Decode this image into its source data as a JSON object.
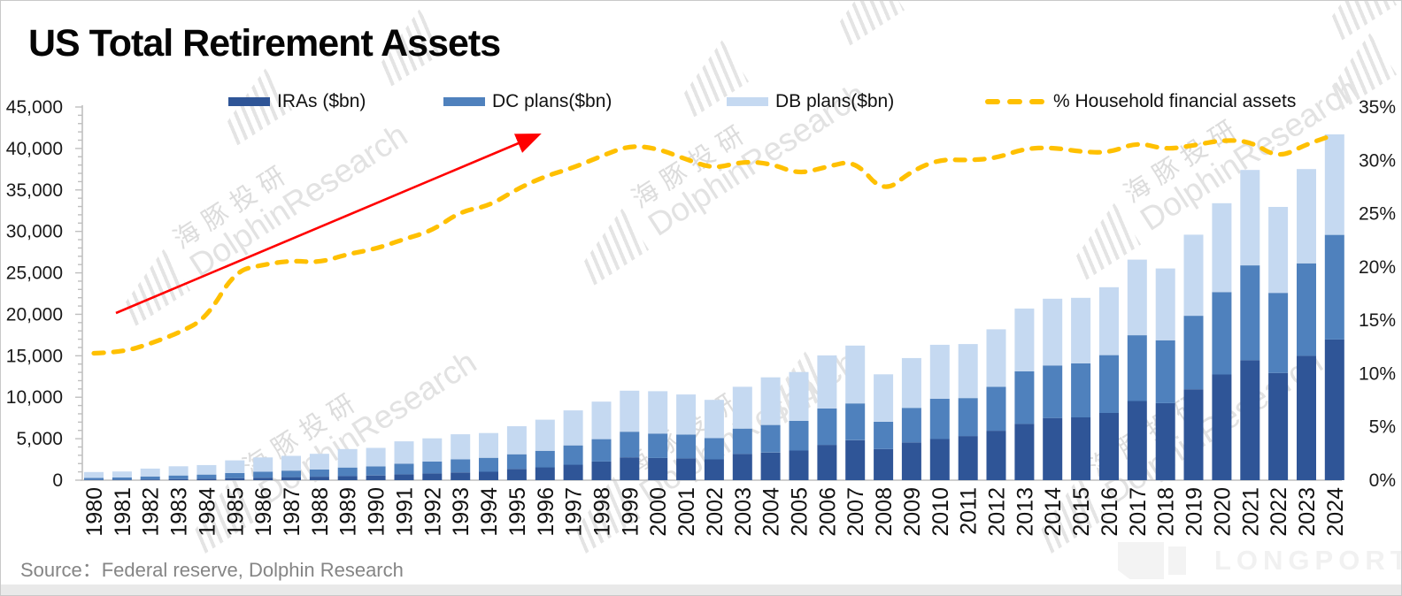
{
  "title": "US Total Retirement Assets",
  "source": "Source：Federal reserve, Dolphin Research",
  "watermark": {
    "cn": "海豚投研",
    "en": "DolphinResearch"
  },
  "footer": {
    "brand": "LONGPORT"
  },
  "legend": {
    "items": [
      {
        "label": "IRAs ($bn)",
        "color": "#2F5597",
        "marker": "bar"
      },
      {
        "label": "DC plans($bn)",
        "color": "#4F81BD",
        "marker": "bar"
      },
      {
        "label": "DB plans($bn)",
        "color": "#C5D9F1",
        "marker": "bar"
      },
      {
        "label": "% Household financial assets",
        "color": "#FFC000",
        "marker": "dashed-line"
      }
    ]
  },
  "chart_data": {
    "type": "bar",
    "stacked": true,
    "grid": false,
    "legend_position": "top",
    "title": "US Total Retirement Assets",
    "xlabel": "",
    "ylabel_left": "",
    "ylabel_right": "",
    "categories": [
      "1980",
      "1981",
      "1982",
      "1983",
      "1984",
      "1985",
      "1986",
      "1987",
      "1988",
      "1989",
      "1990",
      "1991",
      "1992",
      "1993",
      "1994",
      "1995",
      "1996",
      "1997",
      "1998",
      "1999",
      "2000",
      "2001",
      "2002",
      "2003",
      "2004",
      "2005",
      "2006",
      "2007",
      "2008",
      "2009",
      "2010",
      "2011",
      "2012",
      "2013",
      "2014",
      "2015",
      "2016",
      "2017",
      "2018",
      "2019",
      "2020",
      "2021",
      "2022",
      "2023",
      "2024"
    ],
    "series": [
      {
        "name": "IRAs ($bn)",
        "type": "bar",
        "axis": "left",
        "color": "#2F5597",
        "values": [
          30,
          45,
          90,
          135,
          185,
          240,
          300,
          360,
          420,
          500,
          570,
          700,
          810,
          930,
          1010,
          1350,
          1545,
          1865,
          2250,
          2750,
          2680,
          2620,
          2510,
          3155,
          3330,
          3570,
          4250,
          4825,
          3755,
          4535,
          4965,
          5320,
          5960,
          6790,
          7500,
          7570,
          8110,
          9545,
          9290,
          10960,
          12740,
          14460,
          12920,
          15000,
          16970
        ]
      },
      {
        "name": "DC plans($bn)",
        "type": "bar",
        "axis": "left",
        "color": "#4F81BD",
        "values": [
          250,
          280,
          360,
          430,
          490,
          620,
          720,
          790,
          870,
          1030,
          1090,
          1290,
          1440,
          1590,
          1690,
          1770,
          2000,
          2330,
          2700,
          3090,
          2940,
          2880,
          2560,
          3065,
          3320,
          3575,
          4400,
          4430,
          3285,
          4185,
          4860,
          4580,
          5300,
          6330,
          6335,
          6510,
          6970,
          7935,
          7580,
          8860,
          9940,
          11440,
          9660,
          11150,
          12610
        ]
      },
      {
        "name": "DB plans($bn)",
        "type": "bar",
        "axis": "left",
        "color": "#C5D9F1",
        "values": [
          700,
          725,
          945,
          1110,
          1145,
          1530,
          1725,
          1780,
          1885,
          2225,
          2230,
          2690,
          2790,
          3015,
          2985,
          3380,
          3745,
          4215,
          4520,
          4950,
          5110,
          4830,
          4615,
          5040,
          5750,
          5895,
          6400,
          6975,
          5720,
          6010,
          6505,
          6510,
          6930,
          7580,
          8045,
          7910,
          8190,
          9120,
          8655,
          9780,
          10720,
          11510,
          10370,
          11360,
          12120
        ]
      },
      {
        "name": "% Household financial assets",
        "type": "line",
        "axis": "right",
        "color": "#FFC000",
        "style": "dashed",
        "values": [
          11.9,
          12.0,
          12.8,
          13.8,
          15.2,
          19.6,
          20.2,
          20.6,
          20.4,
          21.2,
          21.7,
          22.6,
          23.4,
          25.2,
          25.7,
          27.3,
          28.5,
          29.3,
          30.4,
          31.4,
          31.1,
          30.1,
          29.2,
          29.9,
          29.7,
          28.7,
          29.4,
          30.0,
          26.9,
          29.0,
          30.1,
          30.0,
          30.2,
          31.1,
          31.2,
          30.8,
          30.7,
          31.7,
          31.0,
          31.4,
          31.9,
          31.8,
          30.2,
          31.5,
          32.4
        ]
      }
    ],
    "y_left": {
      "min": 0,
      "max": 45000,
      "step": 5000,
      "minor_step": 1000,
      "tick_labels": [
        "0",
        "5,000",
        "10,000",
        "15,000",
        "20,000",
        "25,000",
        "30,000",
        "35,000",
        "40,000",
        "45,000"
      ]
    },
    "y_right": {
      "min": 0,
      "max": 35,
      "step": 5,
      "tick_labels": [
        "0%",
        "5%",
        "10%",
        "15%",
        "20%",
        "25%",
        "30%",
        "35%"
      ]
    },
    "annotations": [
      {
        "type": "arrow",
        "color": "#FF0000",
        "description": "upward trend arrow over 1981-1997 period"
      }
    ]
  },
  "colors": {
    "ira": "#2F5597",
    "dc": "#4F81BD",
    "db": "#C5D9F1",
    "line": "#FFC000",
    "arrow": "#FF0000",
    "axis": "#BFBFBF",
    "tick_text": "#1A1A1A",
    "source_text": "#858585",
    "footer_band": "#E9E9E9",
    "logo": "#F2F2F2"
  }
}
